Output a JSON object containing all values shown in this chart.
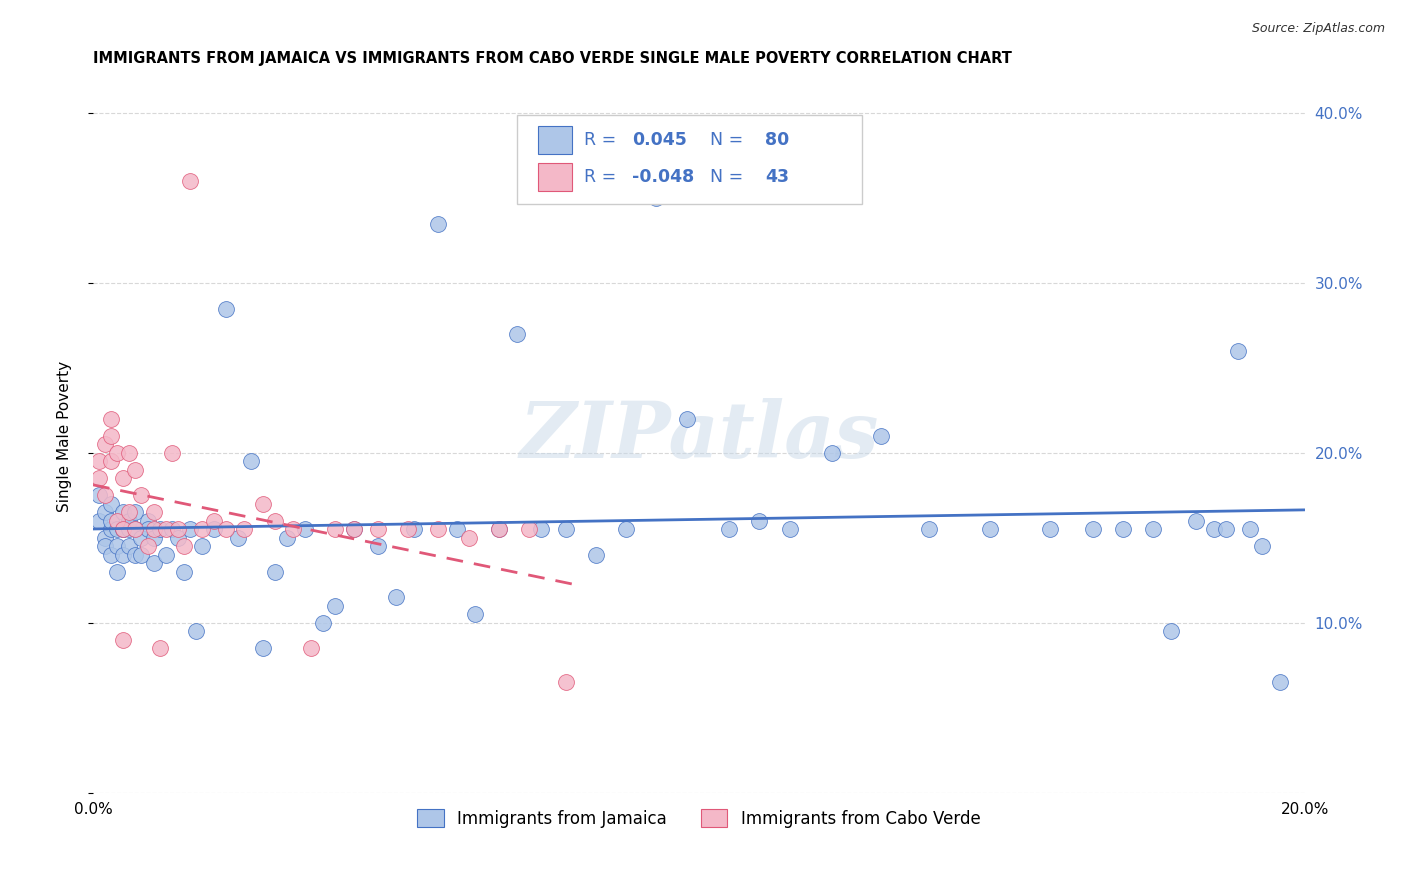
{
  "title": "IMMIGRANTS FROM JAMAICA VS IMMIGRANTS FROM CABO VERDE SINGLE MALE POVERTY CORRELATION CHART",
  "source": "Source: ZipAtlas.com",
  "ylabel": "Single Male Poverty",
  "xlim": [
    0.0,
    0.2
  ],
  "ylim": [
    0.0,
    0.42
  ],
  "yticks": [
    0.0,
    0.1,
    0.2,
    0.3,
    0.4
  ],
  "right_ytick_labels": [
    "",
    "10.0%",
    "20.0%",
    "30.0%",
    "40.0%"
  ],
  "legend1_color": "#aec6e8",
  "legend2_color": "#f4b8c8",
  "line1_color": "#4472c4",
  "line2_color": "#e05878",
  "background_color": "#ffffff",
  "grid_color": "#d8d8d8",
  "watermark": "ZIPatlas",
  "bottom_legend1": "Immigrants from Jamaica",
  "bottom_legend2": "Immigrants from Cabo Verde",
  "jamaica_x": [
    0.001,
    0.001,
    0.002,
    0.002,
    0.002,
    0.003,
    0.003,
    0.003,
    0.003,
    0.004,
    0.004,
    0.004,
    0.005,
    0.005,
    0.005,
    0.005,
    0.006,
    0.006,
    0.006,
    0.007,
    0.007,
    0.007,
    0.008,
    0.008,
    0.009,
    0.009,
    0.01,
    0.01,
    0.011,
    0.012,
    0.013,
    0.014,
    0.015,
    0.016,
    0.017,
    0.018,
    0.02,
    0.022,
    0.024,
    0.026,
    0.028,
    0.03,
    0.032,
    0.035,
    0.038,
    0.04,
    0.043,
    0.047,
    0.05,
    0.053,
    0.057,
    0.06,
    0.063,
    0.067,
    0.07,
    0.074,
    0.078,
    0.083,
    0.088,
    0.093,
    0.098,
    0.105,
    0.11,
    0.115,
    0.122,
    0.13,
    0.138,
    0.148,
    0.158,
    0.165,
    0.17,
    0.175,
    0.178,
    0.182,
    0.185,
    0.187,
    0.189,
    0.191,
    0.193,
    0.196
  ],
  "jamaica_y": [
    0.175,
    0.16,
    0.15,
    0.165,
    0.145,
    0.155,
    0.14,
    0.17,
    0.16,
    0.13,
    0.155,
    0.145,
    0.155,
    0.14,
    0.155,
    0.165,
    0.145,
    0.155,
    0.16,
    0.14,
    0.155,
    0.165,
    0.15,
    0.14,
    0.16,
    0.155,
    0.135,
    0.15,
    0.155,
    0.14,
    0.155,
    0.15,
    0.13,
    0.155,
    0.095,
    0.145,
    0.155,
    0.285,
    0.15,
    0.195,
    0.085,
    0.13,
    0.15,
    0.155,
    0.1,
    0.11,
    0.155,
    0.145,
    0.115,
    0.155,
    0.335,
    0.155,
    0.105,
    0.155,
    0.27,
    0.155,
    0.155,
    0.14,
    0.155,
    0.35,
    0.22,
    0.155,
    0.16,
    0.155,
    0.2,
    0.21,
    0.155,
    0.155,
    0.155,
    0.155,
    0.155,
    0.155,
    0.095,
    0.16,
    0.155,
    0.155,
    0.26,
    0.155,
    0.145,
    0.065
  ],
  "caboverde_x": [
    0.001,
    0.001,
    0.002,
    0.002,
    0.003,
    0.003,
    0.003,
    0.004,
    0.004,
    0.005,
    0.005,
    0.005,
    0.006,
    0.006,
    0.007,
    0.007,
    0.008,
    0.009,
    0.01,
    0.01,
    0.011,
    0.012,
    0.013,
    0.014,
    0.015,
    0.016,
    0.018,
    0.02,
    0.022,
    0.025,
    0.028,
    0.03,
    0.033,
    0.036,
    0.04,
    0.043,
    0.047,
    0.052,
    0.057,
    0.062,
    0.067,
    0.072,
    0.078
  ],
  "caboverde_y": [
    0.185,
    0.195,
    0.205,
    0.175,
    0.21,
    0.22,
    0.195,
    0.2,
    0.16,
    0.09,
    0.155,
    0.185,
    0.2,
    0.165,
    0.19,
    0.155,
    0.175,
    0.145,
    0.165,
    0.155,
    0.085,
    0.155,
    0.2,
    0.155,
    0.145,
    0.36,
    0.155,
    0.16,
    0.155,
    0.155,
    0.17,
    0.16,
    0.155,
    0.085,
    0.155,
    0.155,
    0.155,
    0.155,
    0.155,
    0.15,
    0.155,
    0.155,
    0.065
  ]
}
